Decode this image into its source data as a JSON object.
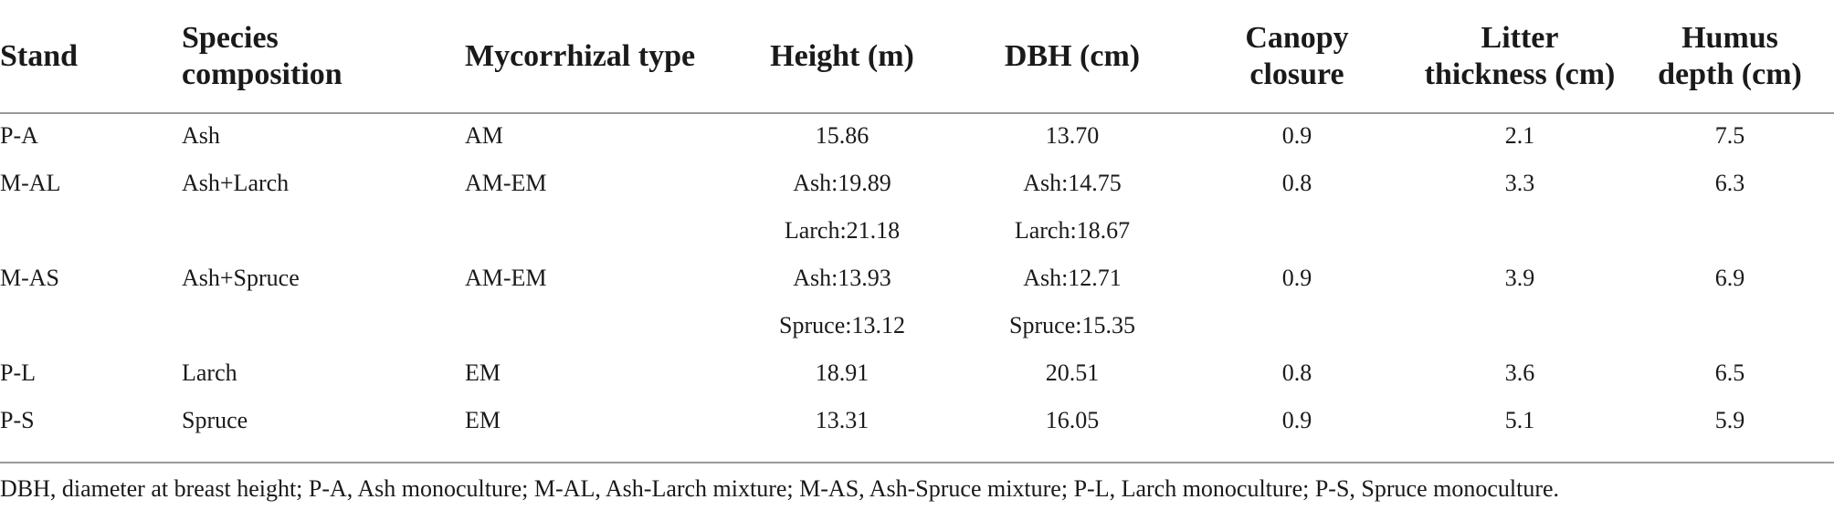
{
  "table": {
    "headers": {
      "stand": "Stand",
      "species": [
        "Species",
        "composition"
      ],
      "mycorrhizal": "Mycorrhizal type",
      "height": "Height (m)",
      "dbh": "DBH (cm)",
      "canopy": [
        "Canopy",
        "closure"
      ],
      "litter": [
        "Litter",
        "thickness (cm)"
      ],
      "humus": [
        "Humus",
        "depth (cm)"
      ]
    },
    "rows": [
      {
        "stand": "P-A",
        "species": "Ash",
        "mycorrhizal": "AM",
        "height": "15.86",
        "dbh": "13.70",
        "canopy": "0.9",
        "litter": "2.1",
        "humus": "7.5"
      },
      {
        "stand": "M-AL",
        "species": "Ash+Larch",
        "mycorrhizal": "AM-EM",
        "height": "Ash:19.89",
        "dbh": "Ash:14.75",
        "canopy": "0.8",
        "litter": "3.3",
        "humus": "6.3"
      },
      {
        "stand": "",
        "species": "",
        "mycorrhizal": "",
        "height": "Larch:21.18",
        "dbh": "Larch:18.67",
        "canopy": "",
        "litter": "",
        "humus": ""
      },
      {
        "stand": "M-AS",
        "species": "Ash+Spruce",
        "mycorrhizal": "AM-EM",
        "height": "Ash:13.93",
        "dbh": "Ash:12.71",
        "canopy": "0.9",
        "litter": "3.9",
        "humus": "6.9"
      },
      {
        "stand": "",
        "species": "",
        "mycorrhizal": "",
        "height": "Spruce:13.12",
        "dbh": "Spruce:15.35",
        "canopy": "",
        "litter": "",
        "humus": ""
      },
      {
        "stand": "P-L",
        "species": "Larch",
        "mycorrhizal": "EM",
        "height": "18.91",
        "dbh": "20.51",
        "canopy": "0.8",
        "litter": "3.6",
        "humus": "6.5"
      },
      {
        "stand": "P-S",
        "species": "Spruce",
        "mycorrhizal": "EM",
        "height": "13.31",
        "dbh": "16.05",
        "canopy": "0.9",
        "litter": "5.1",
        "humus": "5.9"
      }
    ],
    "footnote": "DBH, diameter at breast height; P-A, Ash monoculture; M-AL, Ash-Larch mixture; M-AS, Ash-Spruce mixture; P-L, Larch monoculture; P-S, Spruce monoculture."
  }
}
